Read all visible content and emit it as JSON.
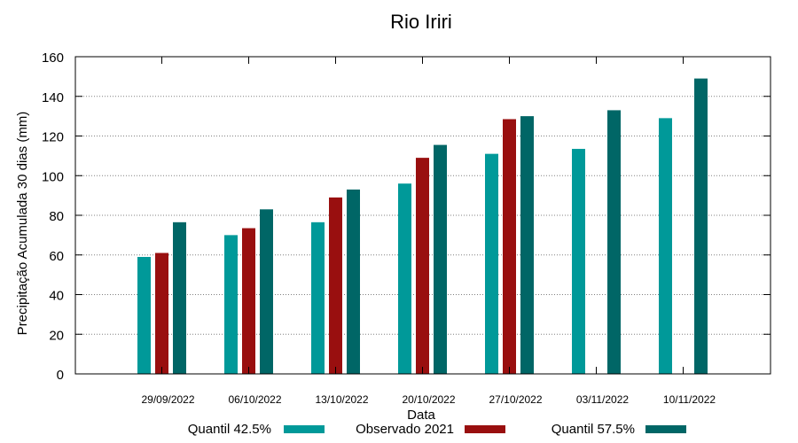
{
  "chart_data": {
    "type": "bar",
    "title": "Rio Iriri",
    "xlabel": "Data",
    "ylabel": "Precipitação Acumulada 30 dias (mm)",
    "ylim": [
      0,
      160
    ],
    "yticks": [
      0,
      20,
      40,
      60,
      80,
      100,
      120,
      140,
      160
    ],
    "grid": true,
    "legend_position": "bottom",
    "categories": [
      "29/09/2022",
      "06/10/2022",
      "13/10/2022",
      "20/10/2022",
      "27/10/2022",
      "03/11/2022",
      "10/11/2022"
    ],
    "series": [
      {
        "name": "Quantil 42.5%",
        "color": "#009999",
        "values": [
          59,
          70,
          76.5,
          96,
          111,
          113.5,
          129
        ]
      },
      {
        "name": "Observado 2021",
        "color": "#990f0f",
        "values": [
          61,
          73.5,
          89,
          109,
          128.5,
          null,
          null
        ]
      },
      {
        "name": "Quantil 57.5%",
        "color": "#006666",
        "values": [
          76.5,
          83,
          93,
          115.5,
          130,
          133,
          149
        ]
      }
    ]
  }
}
